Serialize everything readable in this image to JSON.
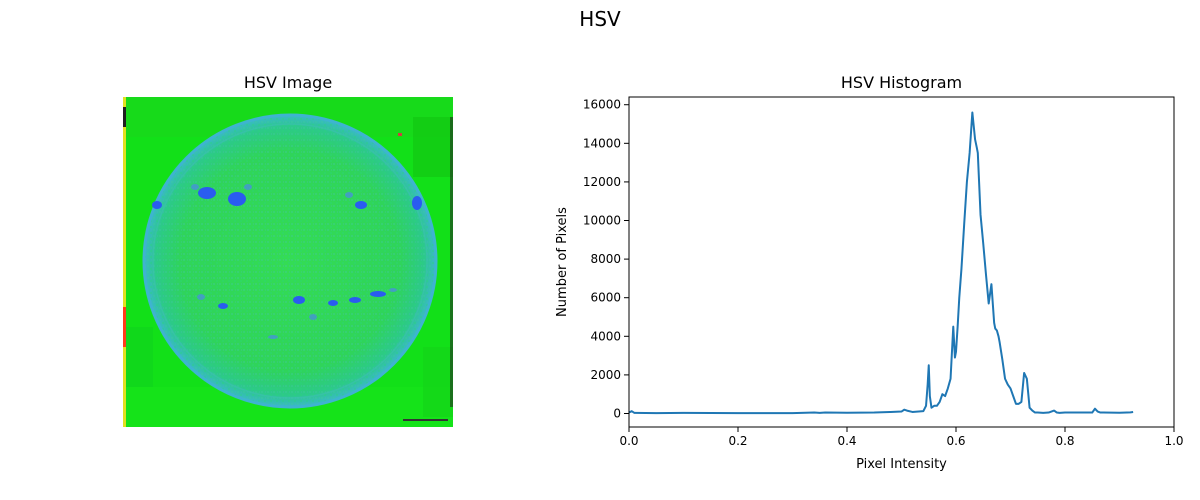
{
  "figure": {
    "title": "HSV"
  },
  "image_panel": {
    "title": "HSV Image"
  },
  "chart_data": {
    "type": "line",
    "title": "HSV Histogram",
    "xlabel": "Pixel Intensity",
    "ylabel": "Number of Pixels",
    "xlim": [
      0.0,
      1.0
    ],
    "ylim": [
      -700,
      16400
    ],
    "xticks": [
      0.0,
      0.2,
      0.4,
      0.6,
      0.8,
      1.0
    ],
    "xtick_labels": [
      "0.0",
      "0.2",
      "0.4",
      "0.6",
      "0.8",
      "1.0"
    ],
    "yticks": [
      0,
      2000,
      4000,
      6000,
      8000,
      10000,
      12000,
      14000,
      16000
    ],
    "ytick_labels": [
      "0",
      "2000",
      "4000",
      "6000",
      "8000",
      "10000",
      "12000",
      "14000",
      "16000"
    ],
    "grid": false,
    "color": "#1f77b4",
    "series": [
      {
        "x": [
          0.0,
          0.005,
          0.01,
          0.05,
          0.1,
          0.2,
          0.3,
          0.34,
          0.35,
          0.36,
          0.4,
          0.45,
          0.48,
          0.5,
          0.505,
          0.51,
          0.52,
          0.54,
          0.545,
          0.548,
          0.55,
          0.552,
          0.555,
          0.56,
          0.565,
          0.57,
          0.575,
          0.58,
          0.585,
          0.59,
          0.595,
          0.598,
          0.6,
          0.603,
          0.606,
          0.61,
          0.615,
          0.62,
          0.625,
          0.63,
          0.635,
          0.638,
          0.64,
          0.645,
          0.65,
          0.655,
          0.66,
          0.665,
          0.67,
          0.672,
          0.675,
          0.678,
          0.68,
          0.685,
          0.69,
          0.695,
          0.7,
          0.705,
          0.71,
          0.715,
          0.72,
          0.725,
          0.73,
          0.735,
          0.74,
          0.745,
          0.75,
          0.76,
          0.77,
          0.78,
          0.785,
          0.79,
          0.8,
          0.85,
          0.855,
          0.86,
          0.865,
          0.87,
          0.9,
          0.92,
          0.925
        ],
        "y": [
          50,
          120,
          30,
          20,
          30,
          20,
          20,
          50,
          30,
          50,
          40,
          50,
          80,
          100,
          200,
          150,
          80,
          120,
          400,
          1500,
          2500,
          900,
          300,
          400,
          400,
          600,
          1000,
          900,
          1300,
          1800,
          4500,
          2900,
          3200,
          4500,
          6000,
          7500,
          9800,
          12000,
          13500,
          15600,
          14200,
          13800,
          13500,
          10300,
          8800,
          7200,
          5700,
          6700,
          4700,
          4400,
          4300,
          4000,
          3700,
          2800,
          1800,
          1500,
          1300,
          900,
          500,
          500,
          600,
          2100,
          1800,
          300,
          150,
          50,
          50,
          30,
          50,
          150,
          50,
          30,
          50,
          50,
          250,
          100,
          50,
          50,
          40,
          60,
          80
        ]
      }
    ]
  }
}
